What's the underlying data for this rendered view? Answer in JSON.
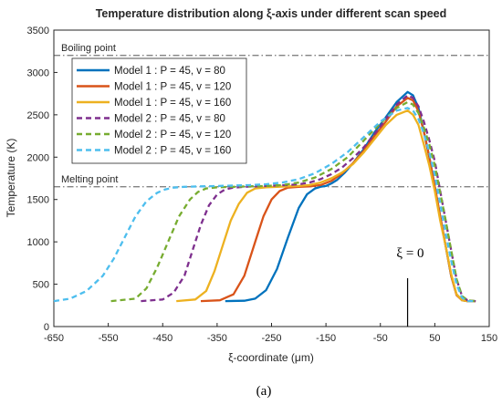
{
  "chart_data": {
    "type": "line",
    "title": "Temperature distribution along ξ-axis under different scan speed",
    "xlabel": "ξ-coordinate (μm)",
    "ylabel": "Temperature (K)",
    "xlim": [
      -650,
      150
    ],
    "ylim": [
      0,
      3500
    ],
    "xticks": [
      -650,
      -550,
      -450,
      -350,
      -250,
      -150,
      -50,
      50,
      150
    ],
    "yticks": [
      0,
      500,
      1000,
      1500,
      2000,
      2500,
      3000,
      3500
    ],
    "grid": false,
    "legend_position": "top-left",
    "reference_lines": [
      {
        "label": "Boiling point",
        "y": 3200
      },
      {
        "label": "Melting point",
        "y": 1650
      }
    ],
    "annotation": {
      "text": "ξ = 0",
      "x": 0
    },
    "panel_label": "(a)",
    "series": [
      {
        "name": "Model 1 : P = 45, v = 80",
        "color": "#0072BD",
        "dash": "solid",
        "x": [
          -335,
          -300,
          -280,
          -260,
          -240,
          -220,
          -200,
          -185,
          -170,
          -160,
          -150,
          -140,
          -130,
          -115,
          -100,
          -80,
          -60,
          -40,
          -20,
          0,
          10,
          20,
          30,
          40,
          50,
          60,
          70,
          80,
          90,
          100,
          110,
          125
        ],
        "y": [
          300,
          305,
          330,
          430,
          680,
          1050,
          1400,
          1560,
          1630,
          1650,
          1660,
          1690,
          1730,
          1820,
          1930,
          2100,
          2300,
          2470,
          2650,
          2770,
          2730,
          2580,
          2300,
          2000,
          1650,
          1300,
          950,
          600,
          380,
          310,
          300,
          300
        ]
      },
      {
        "name": "Model 1 : P = 45, v = 120",
        "color": "#D95319",
        "dash": "solid",
        "x": [
          -380,
          -345,
          -320,
          -300,
          -280,
          -265,
          -250,
          -235,
          -220,
          -200,
          -180,
          -160,
          -140,
          -120,
          -100,
          -80,
          -60,
          -40,
          -20,
          0,
          10,
          20,
          30,
          40,
          50,
          60,
          70,
          80,
          90,
          100,
          110,
          125
        ],
        "y": [
          300,
          310,
          380,
          600,
          1000,
          1300,
          1500,
          1600,
          1640,
          1650,
          1655,
          1670,
          1720,
          1810,
          1930,
          2080,
          2260,
          2420,
          2600,
          2700,
          2670,
          2540,
          2300,
          2000,
          1650,
          1300,
          950,
          600,
          370,
          310,
          300,
          300
        ]
      },
      {
        "name": "Model 1 : P = 45, v = 160",
        "color": "#EDB120",
        "dash": "solid",
        "x": [
          -425,
          -390,
          -370,
          -355,
          -340,
          -325,
          -310,
          -295,
          -280,
          -260,
          -240,
          -220,
          -200,
          -180,
          -160,
          -140,
          -120,
          -100,
          -80,
          -60,
          -40,
          -20,
          0,
          10,
          20,
          30,
          40,
          50,
          60,
          70,
          80,
          90,
          100,
          110,
          125
        ],
        "y": [
          300,
          320,
          420,
          650,
          950,
          1250,
          1450,
          1580,
          1630,
          1645,
          1650,
          1655,
          1660,
          1670,
          1700,
          1750,
          1820,
          1920,
          2060,
          2220,
          2380,
          2500,
          2550,
          2500,
          2380,
          2150,
          1900,
          1600,
          1250,
          950,
          620,
          380,
          310,
          300,
          300
        ]
      },
      {
        "name": "Model 2 : P = 45, v = 80",
        "color": "#7E2F8E",
        "dash": "dashed",
        "x": [
          -490,
          -450,
          -430,
          -410,
          -395,
          -380,
          -365,
          -350,
          -335,
          -320,
          -300,
          -280,
          -260,
          -240,
          -220,
          -200,
          -180,
          -160,
          -140,
          -120,
          -100,
          -80,
          -60,
          -40,
          -20,
          0,
          10,
          20,
          30,
          40,
          50,
          60,
          70,
          80,
          90,
          100,
          110,
          125
        ],
        "y": [
          300,
          320,
          400,
          600,
          900,
          1200,
          1430,
          1560,
          1620,
          1640,
          1650,
          1655,
          1660,
          1665,
          1670,
          1680,
          1700,
          1740,
          1800,
          1880,
          1990,
          2120,
          2280,
          2450,
          2620,
          2730,
          2700,
          2600,
          2420,
          2200,
          1950,
          1600,
          1250,
          900,
          560,
          360,
          310,
          300
        ]
      },
      {
        "name": "Model 2 : P = 45, v = 120",
        "color": "#77AC30",
        "dash": "dashed",
        "x": [
          -545,
          -500,
          -480,
          -460,
          -440,
          -420,
          -400,
          -385,
          -370,
          -350,
          -320,
          -290,
          -260,
          -230,
          -200,
          -170,
          -140,
          -110,
          -80,
          -50,
          -20,
          0,
          10,
          20,
          30,
          40,
          50,
          60,
          70,
          80,
          90,
          100,
          110,
          125
        ],
        "y": [
          300,
          330,
          450,
          700,
          1000,
          1300,
          1500,
          1590,
          1630,
          1645,
          1650,
          1655,
          1660,
          1670,
          1700,
          1760,
          1860,
          2000,
          2200,
          2400,
          2580,
          2650,
          2620,
          2520,
          2350,
          2150,
          1900,
          1580,
          1250,
          900,
          560,
          360,
          310,
          300
        ]
      },
      {
        "name": "Model 2 : P = 45, v = 160",
        "color": "#4DBEEE",
        "dash": "dashed",
        "x": [
          -650,
          -620,
          -590,
          -560,
          -540,
          -520,
          -500,
          -480,
          -460,
          -445,
          -430,
          -410,
          -380,
          -350,
          -320,
          -290,
          -260,
          -230,
          -200,
          -170,
          -140,
          -110,
          -80,
          -50,
          -20,
          0,
          10,
          20,
          30,
          40,
          50,
          60,
          70,
          80,
          90,
          100,
          110,
          125
        ],
        "y": [
          300,
          330,
          420,
          600,
          800,
          1050,
          1300,
          1480,
          1580,
          1620,
          1640,
          1650,
          1655,
          1660,
          1665,
          1670,
          1680,
          1700,
          1740,
          1810,
          1920,
          2060,
          2240,
          2420,
          2550,
          2580,
          2550,
          2450,
          2280,
          2050,
          1780,
          1450,
          1100,
          780,
          500,
          340,
          300,
          300
        ]
      }
    ]
  }
}
